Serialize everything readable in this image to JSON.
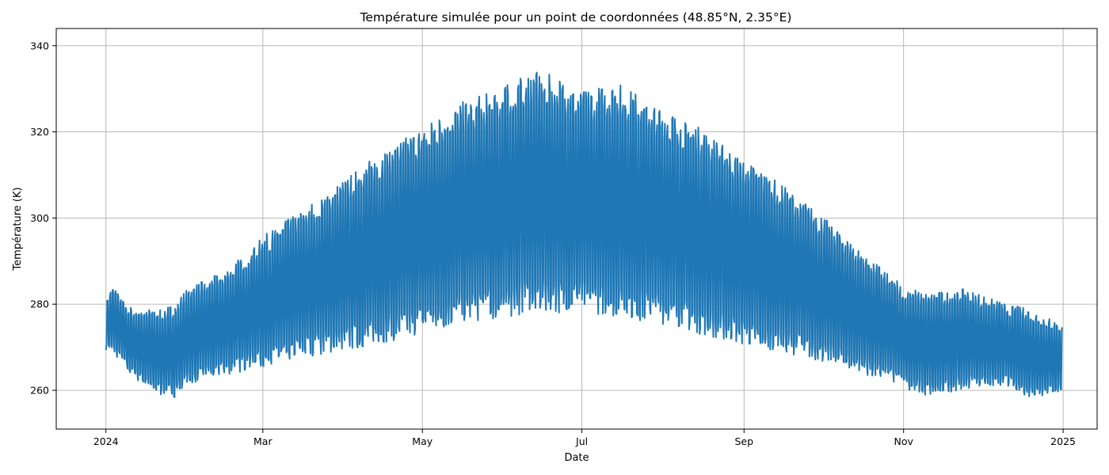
{
  "chart_data": {
    "type": "line",
    "title": "Température simulée pour un point de coordonnées (48.85°N, 2.35°E)",
    "xlabel": "Date",
    "ylabel": "Température (K)",
    "xlim": [
      "2023-12-13",
      "2025-01-14"
    ],
    "ylim": [
      251,
      344
    ],
    "grid": true,
    "legend": "none",
    "xticks": [
      {
        "date": "2024-01-01",
        "label": "2024"
      },
      {
        "date": "2024-03-01",
        "label": "Mar"
      },
      {
        "date": "2024-05-01",
        "label": "May"
      },
      {
        "date": "2024-07-01",
        "label": "Jul"
      },
      {
        "date": "2024-09-01",
        "label": "Sep"
      },
      {
        "date": "2024-11-01",
        "label": "Nov"
      },
      {
        "date": "2025-01-01",
        "label": "2025"
      }
    ],
    "yticks": [
      260,
      280,
      300,
      320,
      340
    ],
    "series": [
      {
        "color": "#1f77b4",
        "line_width": 2,
        "date_range": [
          "2024-01-01",
          "2024-12-31"
        ],
        "daily_samples": 4,
        "daily": [
          {
            "date": "2024-01-01",
            "min": 268,
            "max": 283
          },
          {
            "date": "2024-01-04",
            "min": 267,
            "max": 286
          },
          {
            "date": "2024-01-10",
            "min": 262,
            "max": 281
          },
          {
            "date": "2024-01-20",
            "min": 257,
            "max": 281
          },
          {
            "date": "2024-01-27",
            "min": 256,
            "max": 282
          },
          {
            "date": "2024-02-01",
            "min": 259,
            "max": 286
          },
          {
            "date": "2024-02-15",
            "min": 261,
            "max": 290
          },
          {
            "date": "2024-03-01",
            "min": 262,
            "max": 299
          },
          {
            "date": "2024-03-15",
            "min": 264,
            "max": 305
          },
          {
            "date": "2024-04-01",
            "min": 265,
            "max": 313
          },
          {
            "date": "2024-04-15",
            "min": 266,
            "max": 320
          },
          {
            "date": "2024-05-01",
            "min": 268,
            "max": 326
          },
          {
            "date": "2024-05-15",
            "min": 270,
            "max": 332
          },
          {
            "date": "2024-06-01",
            "min": 271,
            "max": 336
          },
          {
            "date": "2024-06-10",
            "min": 272,
            "max": 340
          },
          {
            "date": "2024-06-20",
            "min": 272,
            "max": 339
          },
          {
            "date": "2024-07-01",
            "min": 273,
            "max": 335
          },
          {
            "date": "2024-07-15",
            "min": 271,
            "max": 337
          },
          {
            "date": "2024-08-01",
            "min": 270,
            "max": 331
          },
          {
            "date": "2024-08-15",
            "min": 268,
            "max": 326
          },
          {
            "date": "2024-09-01",
            "min": 266,
            "max": 318
          },
          {
            "date": "2024-09-15",
            "min": 265,
            "max": 312
          },
          {
            "date": "2024-10-01",
            "min": 263,
            "max": 304
          },
          {
            "date": "2024-10-15",
            "min": 261,
            "max": 296
          },
          {
            "date": "2024-11-01",
            "min": 258,
            "max": 287
          },
          {
            "date": "2024-11-10",
            "min": 256,
            "max": 285
          },
          {
            "date": "2024-11-25",
            "min": 258,
            "max": 286
          },
          {
            "date": "2024-12-10",
            "min": 259,
            "max": 282
          },
          {
            "date": "2024-12-20",
            "min": 256,
            "max": 281
          },
          {
            "date": "2024-12-31",
            "min": 258,
            "max": 277
          }
        ]
      }
    ]
  }
}
